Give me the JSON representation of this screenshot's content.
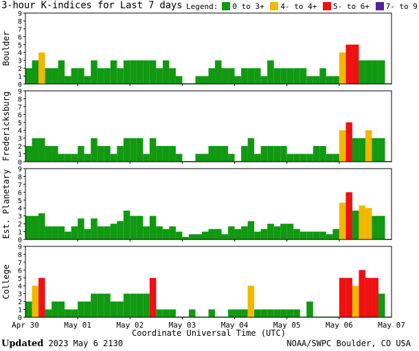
{
  "header": {
    "title": "3-hour K-indices for Last 7 days",
    "legend_title": "Legend:",
    "legend": [
      {
        "label": "0 to 3+",
        "color": "#119911"
      },
      {
        "label": "4- to 4+",
        "color": "#f0b800"
      },
      {
        "label": "5- to 6+",
        "color": "#ee1111"
      },
      {
        "label": "7- to 9",
        "color": "#552299"
      }
    ]
  },
  "footer": {
    "updated_label": "Updated",
    "updated_value": "2023 May  6 2130",
    "credit": "NOAA/SWPC Boulder, CO USA"
  },
  "chart_data": {
    "type": "bar",
    "xlabel": "Coordinate Universal Time (UTC)",
    "x_ticks": [
      "Apr 30",
      "May 01",
      "May 02",
      "May 03",
      "May 04",
      "May 05",
      "May 06",
      "May 07"
    ],
    "y_ticks": [
      0,
      1,
      2,
      3,
      4,
      5,
      6,
      7,
      8,
      9
    ],
    "ylim": [
      0,
      9
    ],
    "color_scale": [
      {
        "range": "0 to 3+",
        "max": 3.67,
        "color": "#119911"
      },
      {
        "range": "4- to 4+",
        "max": 4.67,
        "color": "#f0b800"
      },
      {
        "range": "5- to 6+",
        "max": 6.67,
        "color": "#ee1111"
      },
      {
        "range": "7- to 9",
        "max": 9,
        "color": "#552299"
      }
    ],
    "intervals_per_day": 8,
    "panels": [
      {
        "name": "Boulder",
        "values": [
          2,
          3,
          4,
          2,
          2,
          3,
          1,
          2,
          2,
          1,
          3,
          2,
          2,
          3,
          2,
          3,
          3,
          3,
          3,
          3,
          2,
          3,
          2,
          1,
          0,
          0,
          1,
          1,
          2,
          3,
          2,
          2,
          1,
          2,
          2,
          2,
          1,
          3,
          2,
          2,
          2,
          2,
          2,
          1,
          1,
          2,
          1,
          1,
          4,
          5,
          5,
          3,
          3,
          3,
          3,
          0
        ]
      },
      {
        "name": "Fredericksburg",
        "values": [
          2,
          3,
          3,
          2,
          2,
          1,
          1,
          1,
          2,
          1,
          3,
          2,
          2,
          1,
          2,
          3,
          3,
          3,
          1,
          3,
          2,
          2,
          2,
          1,
          0,
          0,
          1,
          1,
          2,
          2,
          2,
          1,
          0,
          2,
          3,
          1,
          2,
          2,
          2,
          2,
          1,
          1,
          1,
          1,
          2,
          2,
          1,
          1,
          4,
          5,
          3,
          3,
          4,
          3,
          3,
          0
        ]
      },
      {
        "name": "Est. Planetary",
        "values": [
          3,
          3,
          3.33,
          1.67,
          1.67,
          1.67,
          1,
          1.67,
          2.67,
          1.33,
          2.67,
          1.67,
          1.67,
          2,
          2.33,
          3.67,
          3,
          3,
          1.67,
          3,
          1.67,
          1.33,
          1.67,
          1,
          0.33,
          0.67,
          0.67,
          1,
          1.33,
          1.33,
          0.67,
          1.67,
          1.33,
          1.67,
          2.33,
          1,
          1.33,
          2,
          1.67,
          2,
          2,
          1.33,
          1,
          1,
          1,
          1,
          0.67,
          1.33,
          4.67,
          6,
          3.67,
          4.33,
          4,
          3,
          3,
          0
        ]
      },
      {
        "name": "College",
        "values": [
          2,
          4,
          5,
          1,
          2,
          2,
          1,
          1,
          2,
          2,
          3,
          3,
          3,
          2,
          2,
          3,
          3,
          3,
          3,
          5,
          1,
          1,
          1,
          0,
          0,
          1,
          0,
          0,
          1,
          0,
          0,
          1,
          1,
          1,
          4,
          1,
          1,
          1,
          1,
          1,
          1,
          1,
          0,
          2,
          0,
          0,
          0,
          0,
          5,
          5,
          4,
          6,
          5,
          5,
          3,
          0
        ]
      }
    ]
  }
}
